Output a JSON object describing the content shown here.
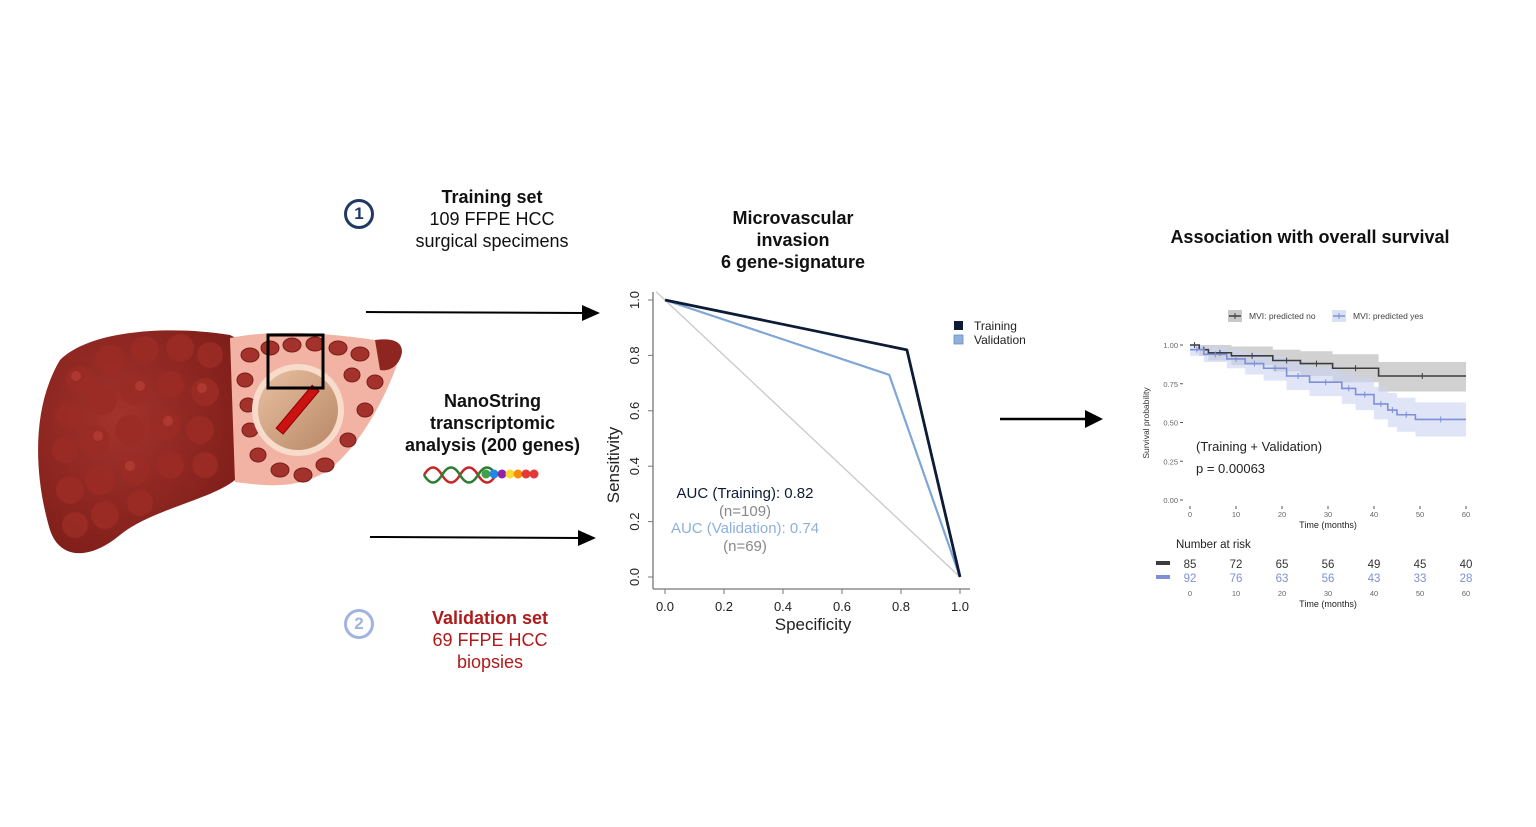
{
  "training": {
    "step_number": "1",
    "title": "Training set",
    "line1": "109 FFPE HCC",
    "line2": "surgical specimens"
  },
  "nanostring": {
    "line1": "NanoString",
    "line2": "transcriptomic",
    "line3": "analysis (200 genes)"
  },
  "validation": {
    "step_number": "2",
    "title": "Validation set",
    "line1": "69 FFPE HCC",
    "line2": "biopsies"
  },
  "roc": {
    "title_line1": "Microvascular",
    "title_line2": "invasion",
    "title_line3": "6 gene-signature"
  },
  "survival": {
    "title": "Association with overall survival",
    "annotation1": "(Training +  Validation)",
    "annotation2": "p = 0.00063",
    "risk_table_title": "Number at risk",
    "risk_times": [
      "0",
      "10",
      "20",
      "30",
      "40",
      "50",
      "60"
    ],
    "risk_no": [
      "85",
      "72",
      "65",
      "56",
      "49",
      "45",
      "40"
    ],
    "risk_yes": [
      "92",
      "76",
      "63",
      "56",
      "43",
      "33",
      "28"
    ],
    "risk_xlabel": "Time (months)"
  },
  "colors": {
    "training": "#0d1b36",
    "validation": "#7fa6d6",
    "predicted_no": "#3d3d3d",
    "predicted_yes": "#7f8fd8",
    "validation_text": "#b01a1a",
    "liver": "#8e2520"
  },
  "chart_data": [
    {
      "type": "line",
      "title": "Microvascular invasion 6 gene-signature",
      "xlabel": "Specificity",
      "ylabel": "Sensitivity",
      "xlim": [
        0,
        1
      ],
      "ylim": [
        0,
        1
      ],
      "xticks": [
        "0.0",
        "0.2",
        "0.4",
        "0.6",
        "0.8",
        "1.0"
      ],
      "yticks": [
        "0.0",
        "0.2",
        "0.4",
        "0.6",
        "0.8",
        "1.0"
      ],
      "legend_position": "right",
      "series": [
        {
          "name": "Training",
          "x": [
            0.0,
            0.82,
            1.0
          ],
          "y": [
            1.0,
            0.82,
            0.0
          ]
        },
        {
          "name": "Validation",
          "x": [
            0.0,
            0.76,
            1.0
          ],
          "y": [
            1.0,
            0.73,
            0.0
          ]
        },
        {
          "name": "reference",
          "x": [
            0.0,
            1.0
          ],
          "y": [
            1.0,
            0.0
          ]
        }
      ],
      "annotations": [
        "AUC (Training): 0.82",
        "(n=109)",
        "AUC (Validation): 0.74",
        "(n=69)"
      ]
    },
    {
      "type": "line",
      "subtype": "kaplan-meier",
      "title": "Association with overall survival",
      "xlabel": "Time (months)",
      "ylabel": "Survival probability",
      "xlim": [
        0,
        60
      ],
      "ylim": [
        0,
        1
      ],
      "xticks": [
        "0",
        "10",
        "20",
        "30",
        "40",
        "50",
        "60"
      ],
      "yticks": [
        "0.00",
        "0.25",
        "0.50",
        "0.75",
        "1.00"
      ],
      "legend_position": "top",
      "series": [
        {
          "name": "MVI: predicted no",
          "t": [
            0,
            2,
            4,
            9,
            18,
            24,
            31,
            41,
            60
          ],
          "s": [
            1.0,
            0.97,
            0.95,
            0.93,
            0.9,
            0.88,
            0.85,
            0.8,
            0.8
          ],
          "ci_low": [
            1.0,
            0.93,
            0.9,
            0.87,
            0.83,
            0.8,
            0.76,
            0.7,
            0.7
          ],
          "ci_high": [
            1.0,
            1.0,
            1.0,
            0.99,
            0.97,
            0.96,
            0.94,
            0.89,
            0.89
          ]
        },
        {
          "name": "MVI: predicted yes",
          "t": [
            0,
            3,
            8,
            12,
            16,
            21,
            26,
            33,
            36,
            40,
            43,
            45,
            49,
            60
          ],
          "s": [
            0.97,
            0.94,
            0.91,
            0.88,
            0.85,
            0.8,
            0.76,
            0.72,
            0.68,
            0.62,
            0.58,
            0.55,
            0.52,
            0.52
          ],
          "ci_low": [
            0.93,
            0.89,
            0.85,
            0.81,
            0.77,
            0.71,
            0.67,
            0.62,
            0.58,
            0.52,
            0.47,
            0.44,
            0.41,
            0.41
          ],
          "ci_high": [
            1.0,
            0.99,
            0.97,
            0.95,
            0.93,
            0.89,
            0.86,
            0.82,
            0.79,
            0.73,
            0.69,
            0.66,
            0.63,
            0.63
          ]
        }
      ],
      "annotations": [
        "(Training +  Validation)",
        "p = 0.00063"
      ]
    }
  ]
}
